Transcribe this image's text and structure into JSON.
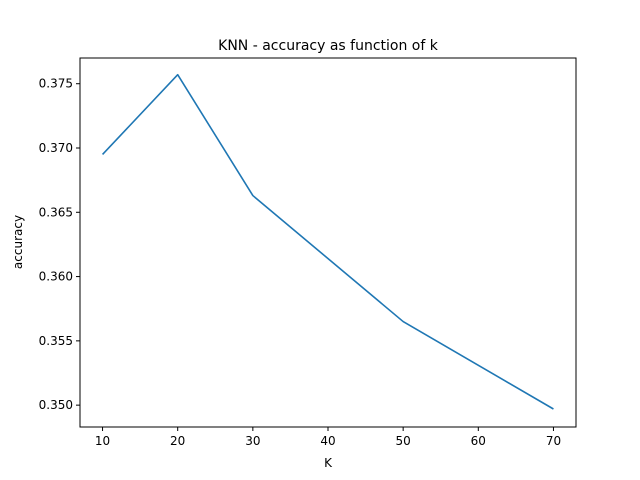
{
  "chart_data": {
    "type": "line",
    "title": "KNN - accuracy as function of k",
    "xlabel": "K",
    "ylabel": "accuracy",
    "x": [
      10,
      20,
      30,
      50,
      70
    ],
    "series": [
      {
        "values": [
          0.3695,
          0.3757,
          0.3663,
          0.3565,
          0.3497
        ],
        "color": "#1f77b4"
      }
    ],
    "xlim": [
      7,
      73
    ],
    "ylim": [
      0.3483,
      0.377
    ],
    "xticks": [
      10,
      20,
      30,
      40,
      50,
      60,
      70
    ],
    "xtick_labels": [
      "10",
      "20",
      "30",
      "40",
      "50",
      "60",
      "70"
    ],
    "yticks": [
      0.35,
      0.355,
      0.36,
      0.365,
      0.37,
      0.375
    ],
    "ytick_labels": [
      "0.350",
      "0.355",
      "0.360",
      "0.365",
      "0.370",
      "0.375"
    ],
    "grid": false,
    "legend": false
  }
}
